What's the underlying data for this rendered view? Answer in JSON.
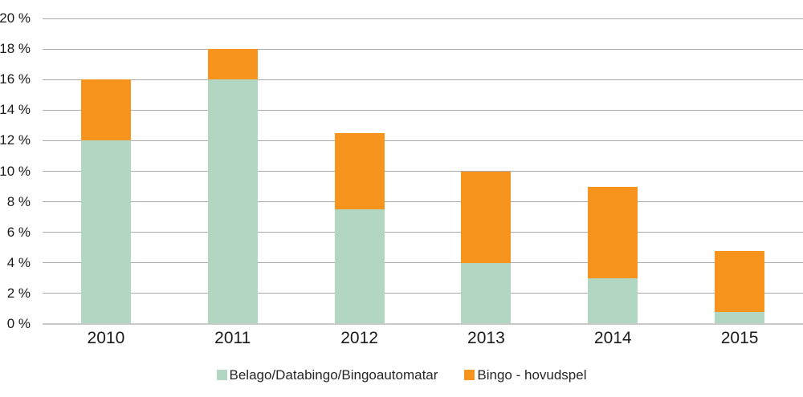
{
  "chart_data": {
    "type": "bar",
    "stacked": true,
    "title": "",
    "categories": [
      "2010",
      "2011",
      "2012",
      "2013",
      "2014",
      "2015"
    ],
    "series": [
      {
        "name": "Belago/Databingo/Bingoautomatar",
        "slug": "belago-databingo-bingoautomatar",
        "color": "#b1d6c2",
        "values": [
          12,
          16,
          7.5,
          4,
          3,
          0.8
        ]
      },
      {
        "name": "Bingo - hovudspel",
        "slug": "bingo-hovudspel",
        "color": "#f7941e",
        "values": [
          4,
          2,
          5,
          6,
          6,
          4
        ]
      }
    ],
    "totals": [
      16,
      18,
      12.5,
      10,
      9,
      4.8
    ],
    "y_axis": {
      "min": 0,
      "max": 20,
      "tick_step": 2,
      "tick_labels": [
        "0 %",
        "2 %",
        "4 %",
        "6 %",
        "8 %",
        "10 %",
        "12 %",
        "14 %",
        "16 %",
        "18 %",
        "20 %"
      ]
    },
    "xlabel": "",
    "ylabel": "",
    "grid": true,
    "legend_position": "bottom"
  },
  "colors": {
    "background": "#ffffff",
    "gridline": "#a9a9a9",
    "baseline": "#c9c9c9",
    "axis_text": "#1a1a1a",
    "legend_text": "#262626"
  }
}
